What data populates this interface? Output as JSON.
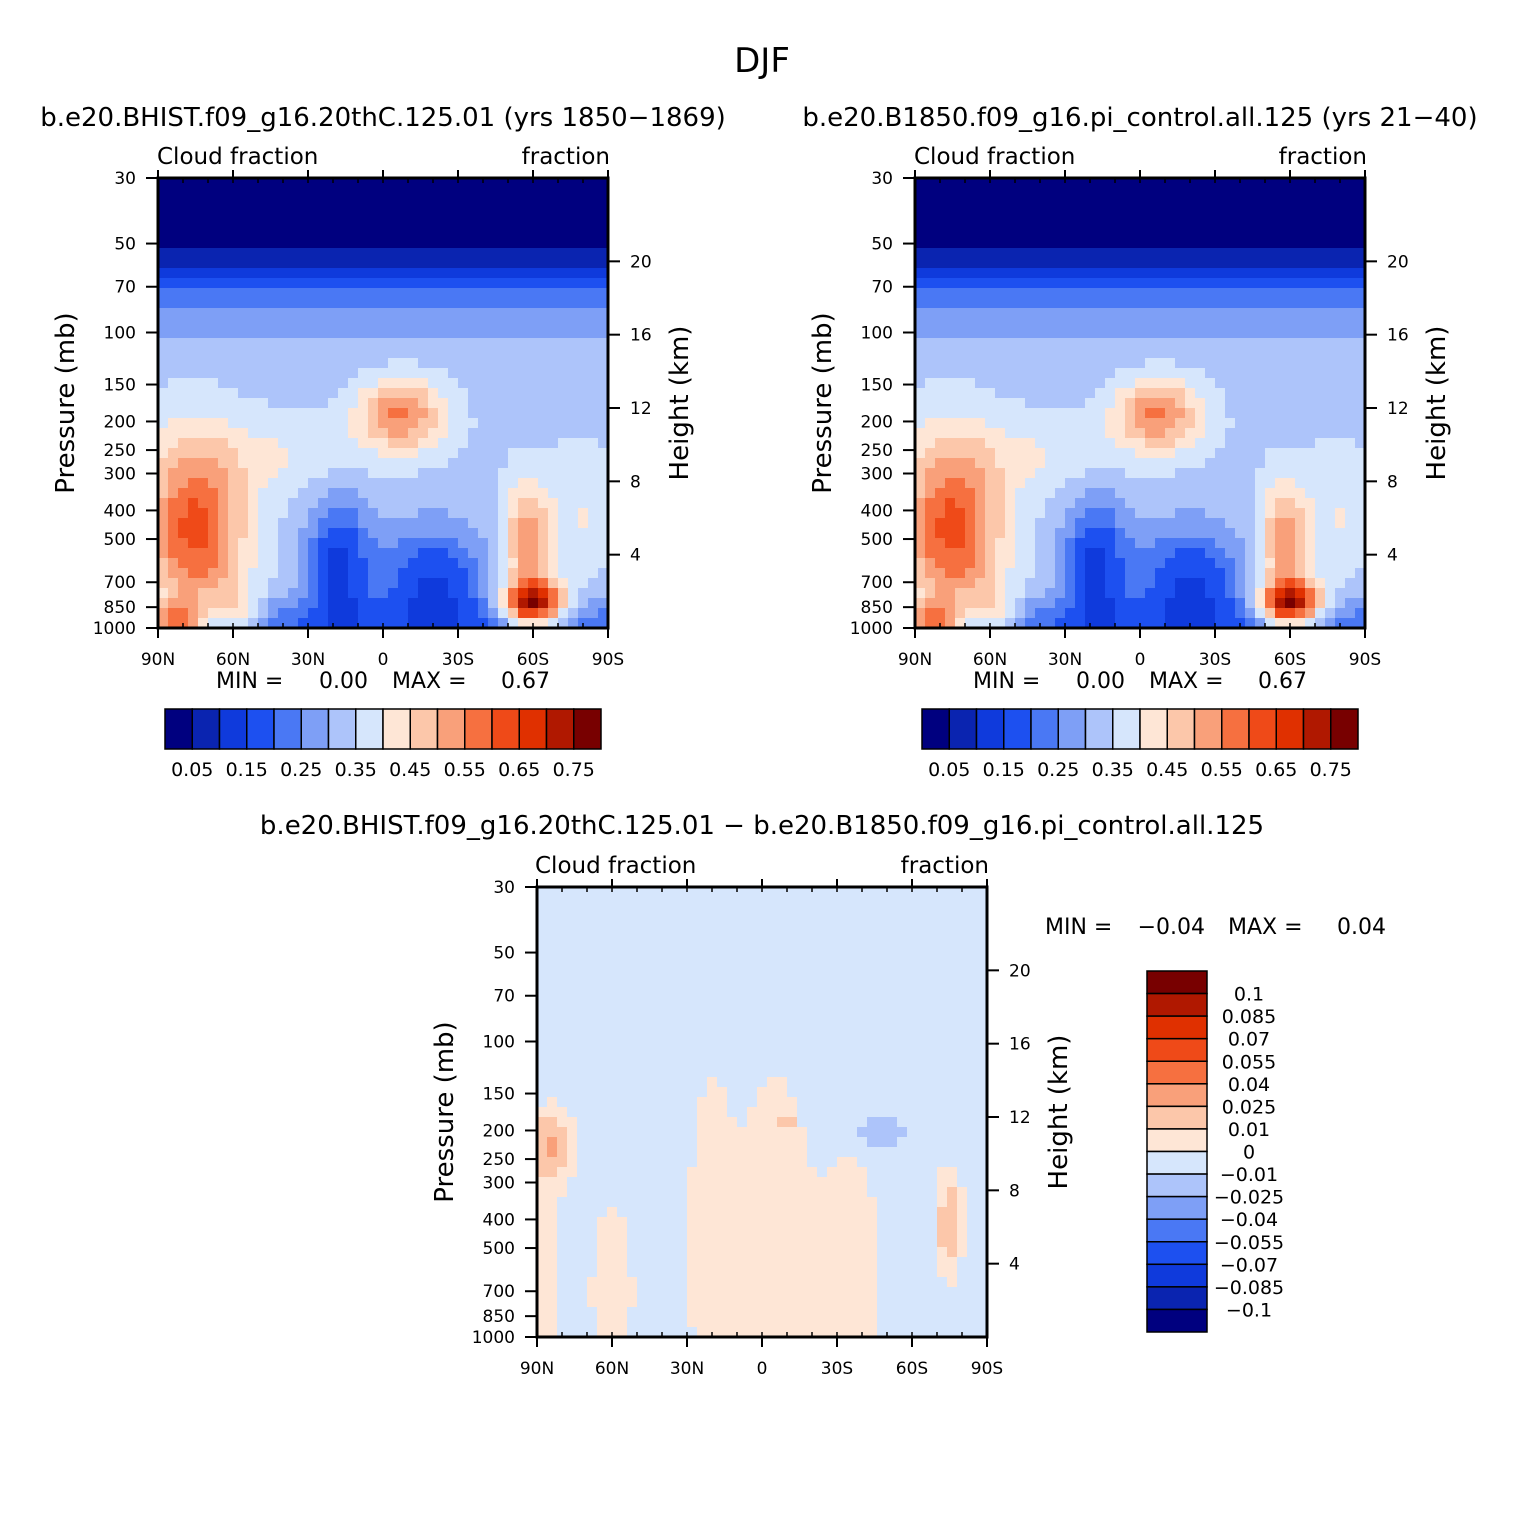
{
  "page_title": "DJF",
  "chart_data": [
    {
      "type": "heatmap",
      "id": "p1",
      "title": "b.e20.BHIST.f09_g16.20thC.125.01 (yrs 1850-1869)",
      "left_label": "Cloud fraction",
      "right_label": "fraction",
      "ylabel": "Pressure (mb)",
      "y2label": "Height (km)",
      "xticks": [
        "90N",
        "60N",
        "30N",
        "0",
        "30S",
        "60S",
        "90S"
      ],
      "xlim": [
        -90,
        90
      ],
      "yticks": [
        30,
        50,
        70,
        100,
        150,
        200,
        250,
        300,
        400,
        500,
        700,
        850,
        1000
      ],
      "ytick_labels": [
        "30",
        "50",
        "70",
        "100",
        "150",
        "200",
        "250",
        "300",
        "400",
        "500",
        "700",
        "850",
        "1000"
      ],
      "ylim": [
        30,
        1000
      ],
      "y2ticks": [
        20,
        16,
        12,
        8,
        4
      ],
      "y2tick_labels": [
        "20",
        "16",
        "12",
        "8",
        "4"
      ],
      "min_label": "MIN =",
      "min_value": "0.00",
      "max_label": "MAX =",
      "max_value": "0.67",
      "levels": [
        0.05,
        0.1,
        0.15,
        0.2,
        0.25,
        0.3,
        0.35,
        0.4,
        0.45,
        0.5,
        0.55,
        0.6,
        0.65,
        0.7,
        0.75
      ],
      "colorbar_labels": [
        "0.05",
        "0.15",
        "0.25",
        "0.35",
        "0.45",
        "0.55",
        "0.65",
        "0.75"
      ],
      "colors": [
        "#00007f",
        "#0a24b0",
        "#0f3adc",
        "#1d50f0",
        "#4a78f4",
        "#7e9ff6",
        "#adc4fa",
        "#d6e6fc",
        "#fee6d6",
        "#fcc7aa",
        "#f9a07a",
        "#f67040",
        "#ef4a18",
        "#e03000",
        "#b01800",
        "#780000"
      ],
      "features": [
        {
          "lat": 0,
          "p": 30,
          "sx": 999,
          "sy": 0.55,
          "a": -0.5
        },
        {
          "lat": 0,
          "p": 1000,
          "sx": 999,
          "sy": 0.18,
          "a": -0.12
        },
        {
          "lat": -20,
          "p": 680,
          "sx": 16,
          "sy": 0.3,
          "a": -0.18
        },
        {
          "lat": 18,
          "p": 600,
          "sx": 9,
          "sy": 0.35,
          "a": -0.2
        },
        {
          "lat": 75,
          "p": 460,
          "sx": 14,
          "sy": 0.5,
          "a": 0.28
        },
        {
          "lat": 83,
          "p": 960,
          "sx": 8,
          "sy": 0.12,
          "a": 0.3
        },
        {
          "lat": 58,
          "p": 880,
          "sx": 7,
          "sy": 0.14,
          "a": 0.12
        },
        {
          "lat": -60,
          "p": 830,
          "sx": 9,
          "sy": 0.12,
          "a": 0.42
        },
        {
          "lat": -58,
          "p": 520,
          "sx": 7,
          "sy": 0.32,
          "a": 0.2
        },
        {
          "lat": -80,
          "p": 420,
          "sx": 8,
          "sy": 0.35,
          "a": 0.06
        },
        {
          "lat": -7,
          "p": 190,
          "sx": 12,
          "sy": 0.2,
          "a": 0.22
        },
        {
          "lat": 40,
          "p": 260,
          "sx": 20,
          "sy": 0.2,
          "a": 0.06
        }
      ],
      "base": 0.34
    },
    {
      "type": "heatmap",
      "id": "p2",
      "title": "b.e20.B1850.f09_g16.pi_control.all.125 (yrs 21-40)",
      "left_label": "Cloud fraction",
      "right_label": "fraction",
      "ylabel": "Pressure (mb)",
      "y2label": "Height (km)",
      "xticks": [
        "90N",
        "60N",
        "30N",
        "0",
        "30S",
        "60S",
        "90S"
      ],
      "xlim": [
        -90,
        90
      ],
      "yticks": [
        30,
        50,
        70,
        100,
        150,
        200,
        250,
        300,
        400,
        500,
        700,
        850,
        1000
      ],
      "ytick_labels": [
        "30",
        "50",
        "70",
        "100",
        "150",
        "200",
        "250",
        "300",
        "400",
        "500",
        "700",
        "850",
        "1000"
      ],
      "ylim": [
        30,
        1000
      ],
      "y2ticks": [
        20,
        16,
        12,
        8,
        4
      ],
      "y2tick_labels": [
        "20",
        "16",
        "12",
        "8",
        "4"
      ],
      "min_label": "MIN =",
      "min_value": "0.00",
      "max_label": "MAX =",
      "max_value": "0.67",
      "levels": [
        0.05,
        0.1,
        0.15,
        0.2,
        0.25,
        0.3,
        0.35,
        0.4,
        0.45,
        0.5,
        0.55,
        0.6,
        0.65,
        0.7,
        0.75
      ],
      "colorbar_labels": [
        "0.05",
        "0.15",
        "0.25",
        "0.35",
        "0.45",
        "0.55",
        "0.65",
        "0.75"
      ],
      "colors": [
        "#00007f",
        "#0a24b0",
        "#0f3adc",
        "#1d50f0",
        "#4a78f4",
        "#7e9ff6",
        "#adc4fa",
        "#d6e6fc",
        "#fee6d6",
        "#fcc7aa",
        "#f9a07a",
        "#f67040",
        "#ef4a18",
        "#e03000",
        "#b01800",
        "#780000"
      ],
      "features": [
        {
          "lat": 0,
          "p": 30,
          "sx": 999,
          "sy": 0.55,
          "a": -0.5
        },
        {
          "lat": 0,
          "p": 1000,
          "sx": 999,
          "sy": 0.18,
          "a": -0.12
        },
        {
          "lat": -20,
          "p": 680,
          "sx": 16,
          "sy": 0.3,
          "a": -0.18
        },
        {
          "lat": 18,
          "p": 600,
          "sx": 9,
          "sy": 0.35,
          "a": -0.2
        },
        {
          "lat": 75,
          "p": 460,
          "sx": 14,
          "sy": 0.5,
          "a": 0.28
        },
        {
          "lat": 83,
          "p": 960,
          "sx": 8,
          "sy": 0.12,
          "a": 0.3
        },
        {
          "lat": 58,
          "p": 880,
          "sx": 7,
          "sy": 0.14,
          "a": 0.12
        },
        {
          "lat": -60,
          "p": 830,
          "sx": 9,
          "sy": 0.12,
          "a": 0.42
        },
        {
          "lat": -58,
          "p": 520,
          "sx": 7,
          "sy": 0.32,
          "a": 0.2
        },
        {
          "lat": -80,
          "p": 420,
          "sx": 8,
          "sy": 0.35,
          "a": 0.06
        },
        {
          "lat": -7,
          "p": 190,
          "sx": 12,
          "sy": 0.2,
          "a": 0.22
        },
        {
          "lat": 40,
          "p": 260,
          "sx": 20,
          "sy": 0.2,
          "a": 0.06
        }
      ],
      "base": 0.34
    },
    {
      "type": "heatmap",
      "id": "p3",
      "title": "b.e20.BHIST.f09_g16.20thC.125.01 - b.e20.B1850.f09_g16.pi_control.all.125",
      "left_label": "Cloud fraction",
      "right_label": "fraction",
      "ylabel": "Pressure (mb)",
      "y2label": "Height (km)",
      "xticks": [
        "90N",
        "60N",
        "30N",
        "0",
        "30S",
        "60S",
        "90S"
      ],
      "xlim": [
        -90,
        90
      ],
      "yticks": [
        30,
        50,
        70,
        100,
        150,
        200,
        250,
        300,
        400,
        500,
        700,
        850,
        1000
      ],
      "ytick_labels": [
        "30",
        "50",
        "70",
        "100",
        "150",
        "200",
        "250",
        "300",
        "400",
        "500",
        "700",
        "850",
        "1000"
      ],
      "ylim": [
        30,
        1000
      ],
      "y2ticks": [
        20,
        16,
        12,
        8,
        4
      ],
      "y2tick_labels": [
        "20",
        "16",
        "12",
        "8",
        "4"
      ],
      "min_label": "MIN =",
      "min_value": "-0.04",
      "max_label": "MAX =",
      "max_value": "0.04",
      "levels": [
        -0.1,
        -0.085,
        -0.07,
        -0.055,
        -0.04,
        -0.025,
        -0.01,
        0,
        0.01,
        0.025,
        0.04,
        0.055,
        0.07,
        0.085,
        0.1
      ],
      "colorbar_labels": [
        "0.1",
        "0.085",
        "0.07",
        "0.055",
        "0.04",
        "0.025",
        "0.01",
        "0",
        "-0.01",
        "-0.025",
        "-0.04",
        "-0.055",
        "-0.07",
        "-0.085",
        "-0.1"
      ],
      "colors": [
        "#00007f",
        "#0a24b0",
        "#0f3adc",
        "#1d50f0",
        "#4a78f4",
        "#7e9ff6",
        "#adc4fa",
        "#d6e6fc",
        "#fee6d6",
        "#fcc7aa",
        "#f9a07a",
        "#f67040",
        "#ef4a18",
        "#e03000",
        "#b01800",
        "#780000"
      ],
      "features": [
        {
          "lat": 85,
          "p": 230,
          "sx": 6,
          "sy": 0.18,
          "a": 0.03
        },
        {
          "lat": 88,
          "p": 600,
          "sx": 5,
          "sy": 0.5,
          "a": 0.012
        },
        {
          "lat": 20,
          "p": 500,
          "sx": 6,
          "sy": 0.9,
          "a": 0.012
        },
        {
          "lat": -5,
          "p": 500,
          "sx": 10,
          "sy": 0.9,
          "a": 0.012
        },
        {
          "lat": -35,
          "p": 600,
          "sx": 8,
          "sy": 0.6,
          "a": 0.012
        },
        {
          "lat": -75,
          "p": 420,
          "sx": 3,
          "sy": 0.25,
          "a": 0.028
        },
        {
          "lat": -48,
          "p": 200,
          "sx": 6,
          "sy": 0.08,
          "a": -0.02
        },
        {
          "lat": 60,
          "p": 700,
          "sx": 6,
          "sy": 0.5,
          "a": 0.01
        },
        {
          "lat": -10,
          "p": 190,
          "sx": 2,
          "sy": 0.05,
          "a": 0.022
        }
      ],
      "base": -0.004
    }
  ]
}
